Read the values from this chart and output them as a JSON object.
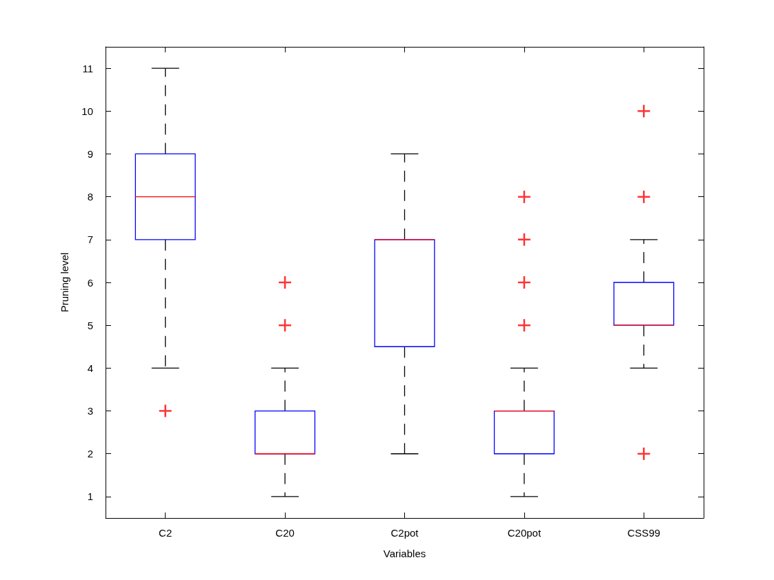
{
  "chart_data": {
    "type": "box",
    "xlabel": "Variables",
    "ylabel": "Pruning level",
    "categories": [
      "C2",
      "C20",
      "C2pot",
      "C20pot",
      "CSS99"
    ],
    "ylim": [
      0.5,
      11.5
    ],
    "yticks": [
      1,
      2,
      3,
      4,
      5,
      6,
      7,
      8,
      9,
      10,
      11
    ],
    "series": [
      {
        "color": "#0000ff",
        "boxes": [
          {
            "low": 4,
            "q1": 7,
            "median": 8,
            "q3": 9,
            "high": 11,
            "outliers": [
              3
            ]
          },
          {
            "low": 1,
            "q1": 2,
            "median": 2,
            "q3": 3,
            "high": 4,
            "outliers": [
              5,
              6
            ]
          },
          {
            "low": 2,
            "q1": 4.5,
            "median": 7,
            "q3": 7,
            "high": 9
          },
          {
            "low": 1,
            "q1": 2,
            "median": 3,
            "q3": 3,
            "high": 4,
            "outliers": [
              5,
              6,
              7,
              8
            ]
          },
          {
            "low": 4,
            "q1": 5,
            "median": 5,
            "q3": 6,
            "high": 7,
            "outliers": [
              2,
              8,
              10
            ]
          }
        ]
      }
    ]
  }
}
